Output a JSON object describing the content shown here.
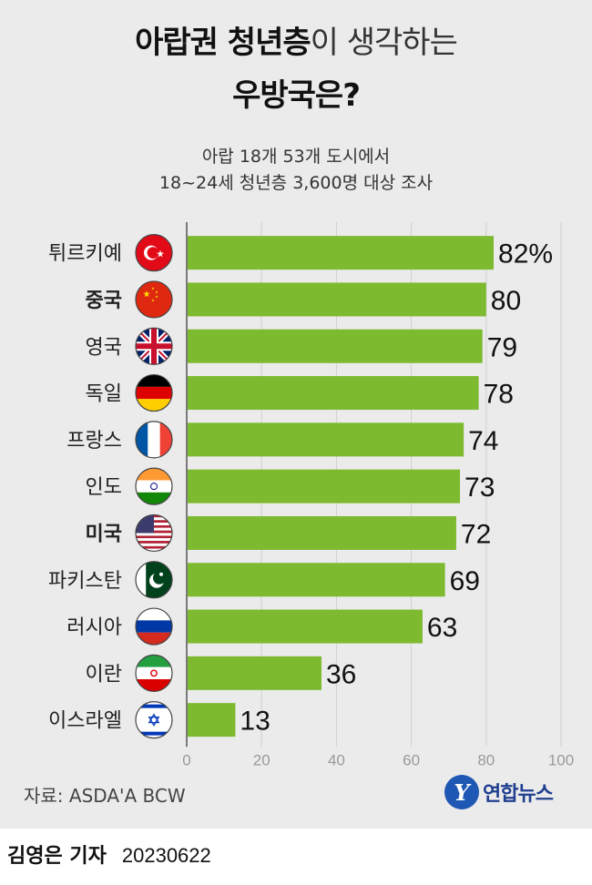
{
  "title": {
    "line1_bold": "아랍권 청년층",
    "line1_light": "이 생각하는",
    "line2": "우방국은?"
  },
  "subtitle": {
    "line1": "아랍 18개 53개 도시에서",
    "line2": "18~24세 청년층 3,600명 대상 조사"
  },
  "chart_data": {
    "type": "bar",
    "orientation": "horizontal",
    "categories": [
      "튀르키예",
      "중국",
      "영국",
      "독일",
      "프랑스",
      "인도",
      "미국",
      "파키스탄",
      "러시아",
      "이란",
      "이스라엘"
    ],
    "bold_categories": [
      "중국",
      "미국"
    ],
    "values": [
      82,
      80,
      79,
      78,
      74,
      73,
      72,
      69,
      63,
      36,
      13
    ],
    "value_labels": [
      "82%",
      "80",
      "79",
      "78",
      "74",
      "73",
      "72",
      "69",
      "63",
      "36",
      "13"
    ],
    "flags": [
      "turkey-flag",
      "china-flag",
      "uk-flag",
      "germany-flag",
      "france-flag",
      "india-flag",
      "usa-flag",
      "pakistan-flag",
      "russia-flag",
      "iran-flag",
      "israel-flag"
    ],
    "xlim": [
      0,
      100
    ],
    "xticks": [
      "0",
      "20",
      "40",
      "60",
      "80",
      "100"
    ],
    "grid": true,
    "bar_color": "#7dba2f"
  },
  "footer": {
    "source": "자료: ASDA'A BCW",
    "logo_text": "연합뉴스",
    "reporter": "김영은 기자",
    "date": "20230622"
  }
}
